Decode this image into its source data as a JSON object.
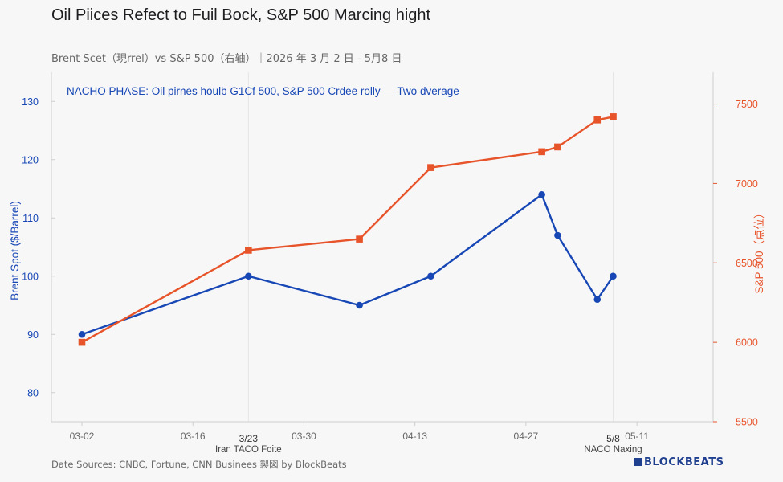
{
  "title": "Oil Piices Refect to Fuil Bock, S&P 500 Marcing hight",
  "subtitle": "Brent Scet（現rrel）vs S&P 500（右轴）｜2026 年 3 月 2 日 - 5月8 日",
  "source": "Date Sources: CNBC, Fortune, CNN Businees 製図 by BlockBeats",
  "brand": "BLOCKBEATS",
  "colors": {
    "oil": "#1747b5",
    "spx": "#e8542a",
    "grid": "#e6e6e6",
    "axis": "#cfcfcf"
  },
  "chart_data": {
    "type": "line",
    "x_ticks": [
      "03-02",
      "03-16",
      "03-30",
      "04-13",
      "04-27",
      "05-11"
    ],
    "x_range": [
      "2026-03-02",
      "2026-05-11"
    ],
    "annotation": "NACHO PHASE: Oil pirnes houlb G1Cf 500, S&P 500 Crdee rolly — Two dverage",
    "events": [
      {
        "date": "2026-03-23",
        "label": "3/23",
        "caption": "Iran TACO Foite"
      },
      {
        "date": "2026-05-08",
        "label": "5/8",
        "caption": "NACO Naxing"
      }
    ],
    "ylabel_left": "Brent Spot ($/Barrel)",
    "ylabel_right": "S&P 500（点位）",
    "ylim_left": [
      75,
      135
    ],
    "yticks_left": [
      80,
      90,
      100,
      110,
      120,
      130
    ],
    "ylim_right": [
      5500,
      7700
    ],
    "yticks_right": [
      5500,
      6000,
      6500,
      7000,
      7500
    ],
    "series": [
      {
        "name": "Brent Spot",
        "axis": "left",
        "marker": "circle",
        "points": [
          {
            "x": "2026-03-02",
            "y": 90
          },
          {
            "x": "2026-03-23",
            "y": 100
          },
          {
            "x": "2026-04-06",
            "y": 95
          },
          {
            "x": "2026-04-15",
            "y": 100
          },
          {
            "x": "2026-04-29",
            "y": 114
          },
          {
            "x": "2026-05-01",
            "y": 107
          },
          {
            "x": "2026-05-06",
            "y": 96
          },
          {
            "x": "2026-05-08",
            "y": 100
          }
        ]
      },
      {
        "name": "S&P 500",
        "axis": "right",
        "marker": "square",
        "points": [
          {
            "x": "2026-03-02",
            "y": 6000
          },
          {
            "x": "2026-03-23",
            "y": 6580
          },
          {
            "x": "2026-04-06",
            "y": 6650
          },
          {
            "x": "2026-04-15",
            "y": 7100
          },
          {
            "x": "2026-04-29",
            "y": 7200
          },
          {
            "x": "2026-05-01",
            "y": 7230
          },
          {
            "x": "2026-05-06",
            "y": 7400
          },
          {
            "x": "2026-05-08",
            "y": 7420
          }
        ]
      }
    ]
  }
}
